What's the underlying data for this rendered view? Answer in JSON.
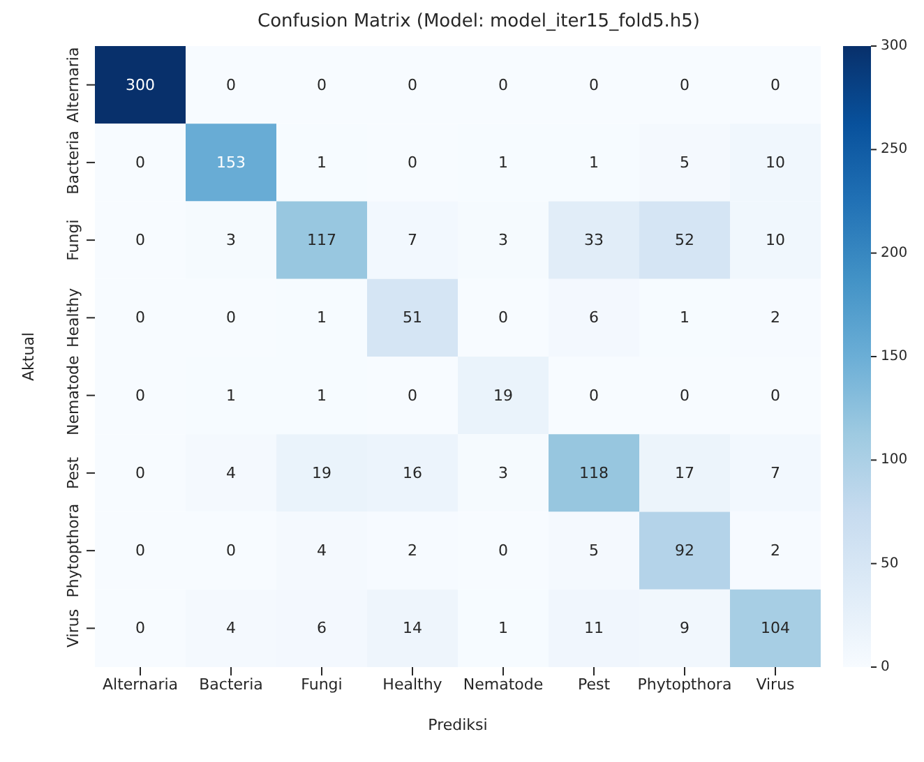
{
  "chart_data": {
    "type": "heatmap",
    "title": "Confusion Matrix (Model: model_iter15_fold5.h5)",
    "xlabel": "Prediksi",
    "ylabel": "Aktual",
    "categories": [
      "Alternaria",
      "Bacteria",
      "Fungi",
      "Healthy",
      "Nematode",
      "Pest",
      "Phytopthora",
      "Virus"
    ],
    "y_categories": [
      "Alternaria",
      "Bacteria",
      "Fungi",
      "Healthy",
      "Nematode",
      "Pest",
      "Phytopthora",
      "Virus"
    ],
    "cells": [
      [
        300,
        0,
        0,
        0,
        0,
        0,
        0,
        0
      ],
      [
        0,
        153,
        1,
        0,
        1,
        1,
        5,
        10
      ],
      [
        0,
        3,
        117,
        7,
        3,
        33,
        52,
        10
      ],
      [
        0,
        0,
        1,
        51,
        0,
        6,
        1,
        2
      ],
      [
        0,
        1,
        1,
        0,
        19,
        0,
        0,
        0
      ],
      [
        0,
        4,
        19,
        16,
        3,
        118,
        17,
        7
      ],
      [
        0,
        0,
        4,
        2,
        0,
        5,
        92,
        2
      ],
      [
        0,
        4,
        6,
        14,
        1,
        11,
        9,
        104
      ]
    ],
    "data_labels": true,
    "clim": [
      0,
      300
    ],
    "cticks": [
      0,
      50,
      100,
      150,
      200,
      250,
      300
    ]
  }
}
